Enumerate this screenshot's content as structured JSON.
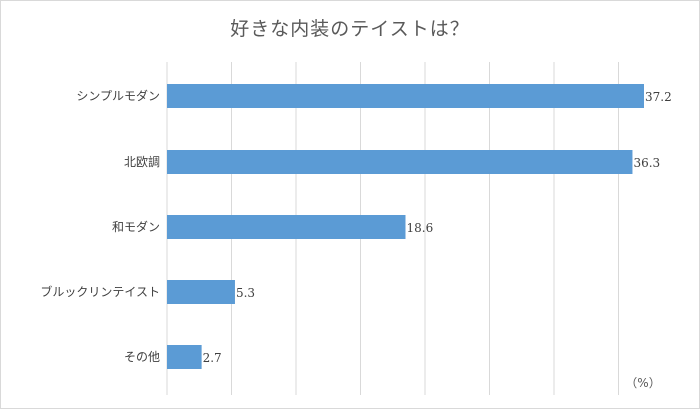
{
  "chart_data": {
    "type": "bar",
    "orientation": "horizontal",
    "title": "好きな内装のテイストは？",
    "categories": [
      "シンプルモダン",
      "北欧調",
      "和モダン",
      "ブルックリンテイスト",
      "その他"
    ],
    "values": [
      37.2,
      36.3,
      18.6,
      5.3,
      2.7
    ],
    "value_labels": [
      "37.2",
      "36.3",
      "18.6",
      "5.3",
      "2.7"
    ],
    "unit": "（%）",
    "xlim": [
      0,
      37.2
    ],
    "grid": true,
    "bar_color": "#5b9bd5",
    "grid_color": "#d9d9d9"
  }
}
